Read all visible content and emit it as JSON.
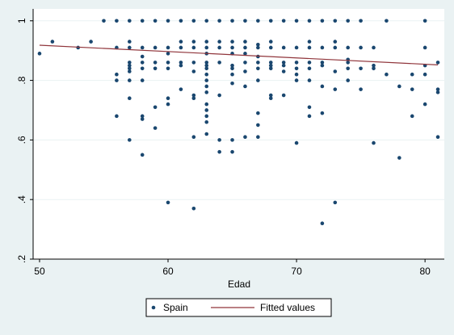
{
  "chart_data": {
    "type": "scatter",
    "title": "",
    "xlabel": "Edad",
    "ylabel": "",
    "xlim": [
      49.5,
      81.5
    ],
    "ylim": [
      0.2,
      1.04
    ],
    "xticks": [
      {
        "value": 50,
        "label": "50"
      },
      {
        "value": 60,
        "label": "60"
      },
      {
        "value": 70,
        "label": "70"
      },
      {
        "value": 80,
        "label": "80"
      }
    ],
    "yticks": [
      {
        "value": 0.2,
        "label": ".2"
      },
      {
        "value": 0.4,
        "label": ".4"
      },
      {
        "value": 0.6,
        "label": ".6"
      },
      {
        "value": 0.8,
        "label": ".8"
      },
      {
        "value": 1.0,
        "label": "1"
      }
    ],
    "grid": "horizontal",
    "legend_position": "bottom",
    "colors": {
      "background": "#eaf2f3",
      "plot_bg": "#ffffff",
      "grid": "#eaf2f3",
      "points": "#1a476f",
      "fit_line": "#90353b"
    },
    "series": [
      {
        "name": "Spain",
        "kind": "scatter",
        "points": [
          [
            50,
            0.89
          ],
          [
            51,
            0.93
          ],
          [
            53,
            0.91
          ],
          [
            54,
            0.93
          ],
          [
            55,
            1.0
          ],
          [
            56,
            1.0
          ],
          [
            56,
            0.91
          ],
          [
            56,
            0.82
          ],
          [
            56,
            0.8
          ],
          [
            56,
            0.68
          ],
          [
            57,
            1.0
          ],
          [
            57,
            0.93
          ],
          [
            57,
            0.91
          ],
          [
            57,
            0.86
          ],
          [
            57,
            0.85
          ],
          [
            57,
            0.84
          ],
          [
            57,
            0.83
          ],
          [
            57,
            0.8
          ],
          [
            57,
            0.74
          ],
          [
            57,
            0.6
          ],
          [
            58,
            1.0
          ],
          [
            58,
            0.91
          ],
          [
            58,
            0.88
          ],
          [
            58,
            0.86
          ],
          [
            58,
            0.84
          ],
          [
            58,
            0.8
          ],
          [
            58,
            0.68
          ],
          [
            58,
            0.67
          ],
          [
            58,
            0.55
          ],
          [
            59,
            1.0
          ],
          [
            59,
            0.91
          ],
          [
            59,
            0.86
          ],
          [
            59,
            0.84
          ],
          [
            59,
            0.71
          ],
          [
            59,
            0.64
          ],
          [
            60,
            1.0
          ],
          [
            60,
            0.91
          ],
          [
            60,
            0.89
          ],
          [
            60,
            0.86
          ],
          [
            60,
            0.84
          ],
          [
            60,
            0.74
          ],
          [
            60,
            0.72
          ],
          [
            60,
            0.39
          ],
          [
            61,
            1.0
          ],
          [
            61,
            0.93
          ],
          [
            61,
            0.91
          ],
          [
            61,
            0.86
          ],
          [
            61,
            0.85
          ],
          [
            61,
            0.77
          ],
          [
            62,
            1.0
          ],
          [
            62,
            0.93
          ],
          [
            62,
            0.91
          ],
          [
            62,
            0.86
          ],
          [
            62,
            0.83
          ],
          [
            62,
            0.75
          ],
          [
            62,
            0.74
          ],
          [
            62,
            0.61
          ],
          [
            62,
            0.37
          ],
          [
            63,
            1.0
          ],
          [
            63,
            0.93
          ],
          [
            63,
            0.91
          ],
          [
            63,
            0.89
          ],
          [
            63,
            0.86
          ],
          [
            63,
            0.85
          ],
          [
            63,
            0.84
          ],
          [
            63,
            0.82
          ],
          [
            63,
            0.8
          ],
          [
            63,
            0.78
          ],
          [
            63,
            0.76
          ],
          [
            63,
            0.72
          ],
          [
            63,
            0.7
          ],
          [
            63,
            0.68
          ],
          [
            63,
            0.66
          ],
          [
            63,
            0.62
          ],
          [
            64,
            1.0
          ],
          [
            64,
            0.93
          ],
          [
            64,
            0.91
          ],
          [
            64,
            0.86
          ],
          [
            64,
            0.75
          ],
          [
            64,
            0.6
          ],
          [
            64,
            0.56
          ],
          [
            65,
            1.0
          ],
          [
            65,
            0.93
          ],
          [
            65,
            0.91
          ],
          [
            65,
            0.89
          ],
          [
            65,
            0.85
          ],
          [
            65,
            0.84
          ],
          [
            65,
            0.82
          ],
          [
            65,
            0.79
          ],
          [
            65,
            0.6
          ],
          [
            65,
            0.56
          ],
          [
            66,
            1.0
          ],
          [
            66,
            0.93
          ],
          [
            66,
            0.91
          ],
          [
            66,
            0.89
          ],
          [
            66,
            0.86
          ],
          [
            66,
            0.83
          ],
          [
            66,
            0.78
          ],
          [
            66,
            0.61
          ],
          [
            67,
            1.0
          ],
          [
            67,
            0.92
          ],
          [
            67,
            0.91
          ],
          [
            67,
            0.88
          ],
          [
            67,
            0.86
          ],
          [
            67,
            0.84
          ],
          [
            67,
            0.8
          ],
          [
            67,
            0.69
          ],
          [
            67,
            0.65
          ],
          [
            67,
            0.61
          ],
          [
            68,
            1.0
          ],
          [
            68,
            0.93
          ],
          [
            68,
            0.91
          ],
          [
            68,
            0.86
          ],
          [
            68,
            0.85
          ],
          [
            68,
            0.84
          ],
          [
            68,
            0.75
          ],
          [
            68,
            0.74
          ],
          [
            69,
            1.0
          ],
          [
            69,
            0.91
          ],
          [
            69,
            0.86
          ],
          [
            69,
            0.85
          ],
          [
            69,
            0.83
          ],
          [
            69,
            0.75
          ],
          [
            70,
            1.0
          ],
          [
            70,
            0.91
          ],
          [
            70,
            0.86
          ],
          [
            70,
            0.84
          ],
          [
            70,
            0.82
          ],
          [
            70,
            0.8
          ],
          [
            70,
            0.59
          ],
          [
            71,
            1.0
          ],
          [
            71,
            0.93
          ],
          [
            71,
            0.91
          ],
          [
            71,
            0.86
          ],
          [
            71,
            0.84
          ],
          [
            71,
            0.8
          ],
          [
            71,
            0.71
          ],
          [
            71,
            0.68
          ],
          [
            72,
            1.0
          ],
          [
            72,
            0.91
          ],
          [
            72,
            0.86
          ],
          [
            72,
            0.85
          ],
          [
            72,
            0.78
          ],
          [
            72,
            0.69
          ],
          [
            72,
            0.32
          ],
          [
            73,
            1.0
          ],
          [
            73,
            0.93
          ],
          [
            73,
            0.91
          ],
          [
            73,
            0.83
          ],
          [
            73,
            0.77
          ],
          [
            73,
            0.39
          ],
          [
            74,
            1.0
          ],
          [
            74,
            0.91
          ],
          [
            74,
            0.87
          ],
          [
            74,
            0.86
          ],
          [
            74,
            0.84
          ],
          [
            74,
            0.8
          ],
          [
            75,
            1.0
          ],
          [
            75,
            0.91
          ],
          [
            75,
            0.84
          ],
          [
            75,
            0.77
          ],
          [
            76,
            0.91
          ],
          [
            76,
            0.85
          ],
          [
            76,
            0.84
          ],
          [
            76,
            0.59
          ],
          [
            77,
            1.0
          ],
          [
            77,
            0.82
          ],
          [
            78,
            0.78
          ],
          [
            78,
            0.54
          ],
          [
            79,
            0.82
          ],
          [
            79,
            0.77
          ],
          [
            79,
            0.68
          ],
          [
            80,
            1.0
          ],
          [
            80,
            0.91
          ],
          [
            80,
            0.85
          ],
          [
            80,
            0.82
          ],
          [
            80,
            0.72
          ],
          [
            81,
            0.86
          ],
          [
            81,
            0.77
          ],
          [
            81,
            0.76
          ],
          [
            81,
            0.61
          ]
        ]
      },
      {
        "name": "Fitted values",
        "kind": "line",
        "points": [
          [
            50,
            0.918
          ],
          [
            81,
            0.852
          ]
        ]
      }
    ]
  }
}
